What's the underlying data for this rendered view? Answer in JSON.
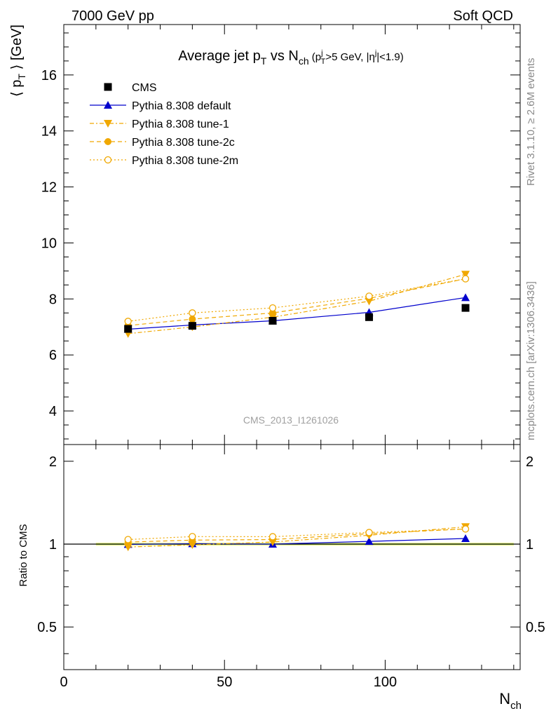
{
  "header": {
    "left": "7000 GeV pp",
    "right": "Soft QCD"
  },
  "side_labels": {
    "rivet": "Rivet 3.1.10, ≥ 2.6M events",
    "mcplots": "mcplots.cern.ch [arXiv:1306.3436]"
  },
  "analysis_id": "CMS_2013_I1261026",
  "colors": {
    "cms": "#000000",
    "default": "#0000cc",
    "tunes": "#f0a800",
    "band_outer": "#eef98a",
    "band_inner": "#8fe07a"
  },
  "chart_data": [
    {
      "type": "line",
      "title": "Average jet p_T vs N_ch (p_T^j>5 GeV, |η^j|<1.9)",
      "xlabel": "N_ch",
      "ylabel": "⟨ p_T ⟩ [GeV]",
      "xlim": [
        0,
        142
      ],
      "ylim": [
        2.8,
        17.8
      ],
      "yticks": [
        4,
        6,
        8,
        10,
        12,
        14,
        16
      ],
      "legend_position": "top-left",
      "series": [
        {
          "name": "CMS",
          "marker": "square",
          "x": [
            20,
            40,
            65,
            95,
            125
          ],
          "y": [
            6.93,
            7.04,
            7.22,
            7.35,
            7.68
          ]
        },
        {
          "name": "Pythia 8.308 default",
          "marker": "triangle-up",
          "line": "solid",
          "x": [
            20,
            40,
            65,
            95,
            125
          ],
          "y": [
            6.92,
            7.07,
            7.22,
            7.52,
            8.05
          ]
        },
        {
          "name": "Pythia 8.308 tune-1",
          "marker": "triangle-down",
          "line": "dashdot",
          "x": [
            20,
            40,
            65,
            95,
            125
          ],
          "y": [
            6.76,
            7.0,
            7.35,
            7.92,
            8.88
          ]
        },
        {
          "name": "Pythia 8.308 tune-2c",
          "marker": "circle",
          "line": "dashed",
          "x": [
            20,
            40,
            65,
            95,
            125
          ],
          "y": [
            7.05,
            7.28,
            7.5,
            8.02,
            8.72
          ]
        },
        {
          "name": "Pythia 8.308 tune-2m",
          "marker": "circle-open",
          "line": "dotted",
          "x": [
            20,
            40,
            65,
            95,
            125
          ],
          "y": [
            7.2,
            7.5,
            7.68,
            8.1,
            8.72
          ]
        }
      ]
    },
    {
      "type": "line",
      "xlabel": "N_ch",
      "ylabel": "Ratio to CMS",
      "xlim": [
        0,
        142
      ],
      "ylim": [
        0.35,
        2.3
      ],
      "y_scale": "log",
      "yticks": [
        0.5,
        1,
        2
      ],
      "band_x_range": [
        10,
        140
      ],
      "series": [
        {
          "name": "Pythia 8.308 default",
          "x": [
            20,
            40,
            65,
            95,
            125
          ],
          "y": [
            0.998,
            1.004,
            1.0,
            1.023,
            1.048
          ]
        },
        {
          "name": "Pythia 8.308 tune-1",
          "x": [
            20,
            40,
            65,
            95,
            125
          ],
          "y": [
            0.976,
            0.994,
            1.018,
            1.077,
            1.156
          ]
        },
        {
          "name": "Pythia 8.308 tune-2c",
          "x": [
            20,
            40,
            65,
            95,
            125
          ],
          "y": [
            1.017,
            1.034,
            1.039,
            1.091,
            1.135
          ]
        },
        {
          "name": "Pythia 8.308 tune-2m",
          "x": [
            20,
            40,
            65,
            95,
            125
          ],
          "y": [
            1.039,
            1.065,
            1.064,
            1.102,
            1.135
          ]
        }
      ]
    }
  ]
}
